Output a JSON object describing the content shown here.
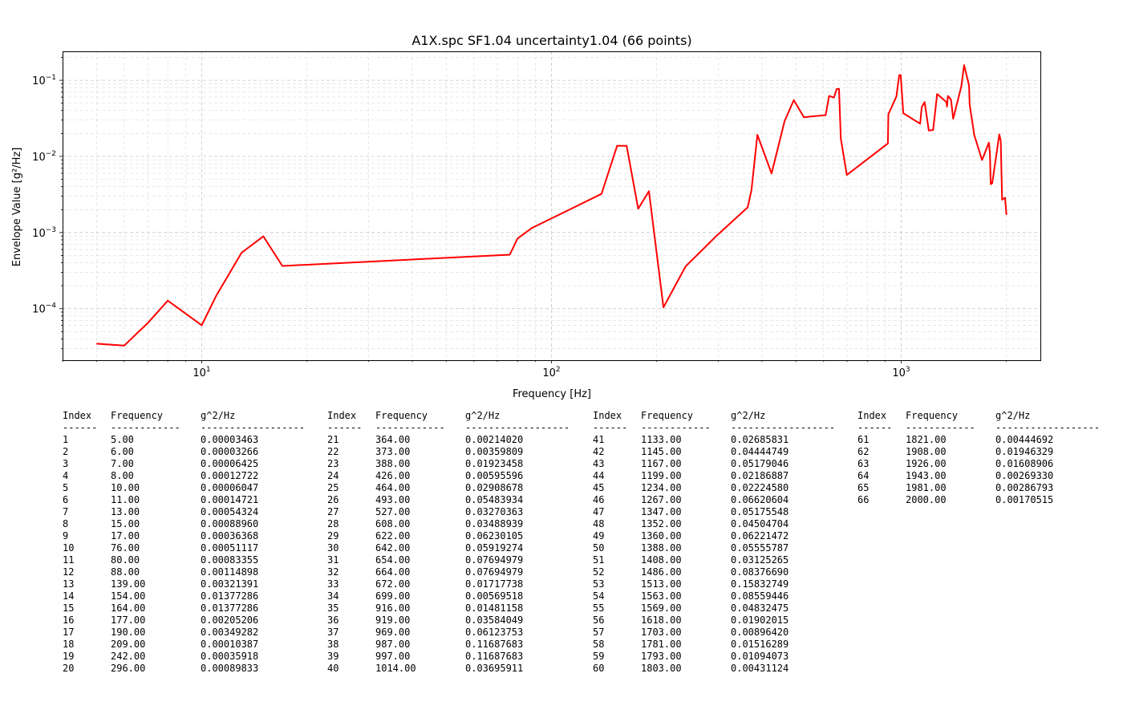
{
  "chart_data": {
    "type": "line",
    "title": "A1X.spc SF1.04 uncertainty1.04 (66 points)",
    "xlabel": "Frequency [Hz]",
    "ylabel": "Envelope Value [g²/Hz]",
    "xscale": "log",
    "yscale": "log",
    "xlim": [
      4.0,
      2500.0
    ],
    "ylim": [
      2.1e-05,
      0.24
    ],
    "grid": true,
    "line_color": "#ff0000",
    "x_tick_labels": [
      {
        "value": 10,
        "base": "10",
        "exp": "1"
      },
      {
        "value": 100,
        "base": "10",
        "exp": "2"
      },
      {
        "value": 1000,
        "base": "10",
        "exp": "3"
      }
    ],
    "y_tick_labels": [
      {
        "value": 0.0001,
        "base": "10",
        "exp": "−4"
      },
      {
        "value": 0.001,
        "base": "10",
        "exp": "−3"
      },
      {
        "value": 0.01,
        "base": "10",
        "exp": "−2"
      },
      {
        "value": 0.1,
        "base": "10",
        "exp": "−1"
      }
    ],
    "x": [
      5,
      6,
      7,
      8,
      10,
      11,
      13,
      15,
      17,
      76,
      80,
      88,
      139,
      154,
      164,
      177,
      190,
      209,
      242,
      296,
      364,
      373,
      388,
      426,
      464,
      493,
      527,
      608,
      622,
      642,
      654,
      664,
      672,
      699,
      916,
      919,
      969,
      987,
      997,
      1014,
      1133,
      1145,
      1167,
      1199,
      1234,
      1267,
      1347,
      1352,
      1360,
      1388,
      1408,
      1486,
      1513,
      1563,
      1569,
      1618,
      1703,
      1781,
      1793,
      1803,
      1821,
      1908,
      1926,
      1943,
      1981,
      2000
    ],
    "y": [
      3.463e-05,
      3.266e-05,
      6.425e-05,
      0.00012722,
      6.047e-05,
      0.00014721,
      0.00054324,
      0.0008896,
      0.00036368,
      0.00051117,
      0.00083355,
      0.00114898,
      0.00321391,
      0.01377286,
      0.01377286,
      0.00205206,
      0.00349282,
      0.00010387,
      0.00035918,
      0.00089833,
      0.0021402,
      0.00359809,
      0.01923458,
      0.00595596,
      0.02908678,
      0.05483934,
      0.03270363,
      0.03488939,
      0.06230105,
      0.05919274,
      0.07694979,
      0.07694979,
      0.01717738,
      0.00569518,
      0.01481158,
      0.03584049,
      0.06123753,
      0.11687683,
      0.11687683,
      0.03695911,
      0.02685831,
      0.04444749,
      0.05179046,
      0.02186887,
      0.0222458,
      0.06620604,
      0.05175548,
      0.04504704,
      0.06221472,
      0.05555787,
      0.03125265,
      0.0837669,
      0.15832749,
      0.08559446,
      0.04832475,
      0.01902015,
      0.0089642,
      0.01516289,
      0.01094073,
      0.00431124,
      0.00444692,
      0.01946329,
      0.01608906,
      0.0026933,
      0.00286793,
      0.00170515
    ]
  },
  "table": {
    "headers": [
      "Index",
      "Frequency",
      "g^2/Hz"
    ],
    "separators": [
      "------",
      "------------",
      "------------------"
    ],
    "rows": [
      [
        "1",
        "5.00",
        "0.00003463"
      ],
      [
        "2",
        "6.00",
        "0.00003266"
      ],
      [
        "3",
        "7.00",
        "0.00006425"
      ],
      [
        "4",
        "8.00",
        "0.00012722"
      ],
      [
        "5",
        "10.00",
        "0.00006047"
      ],
      [
        "6",
        "11.00",
        "0.00014721"
      ],
      [
        "7",
        "13.00",
        "0.00054324"
      ],
      [
        "8",
        "15.00",
        "0.00088960"
      ],
      [
        "9",
        "17.00",
        "0.00036368"
      ],
      [
        "10",
        "76.00",
        "0.00051117"
      ],
      [
        "11",
        "80.00",
        "0.00083355"
      ],
      [
        "12",
        "88.00",
        "0.00114898"
      ],
      [
        "13",
        "139.00",
        "0.00321391"
      ],
      [
        "14",
        "154.00",
        "0.01377286"
      ],
      [
        "15",
        "164.00",
        "0.01377286"
      ],
      [
        "16",
        "177.00",
        "0.00205206"
      ],
      [
        "17",
        "190.00",
        "0.00349282"
      ],
      [
        "18",
        "209.00",
        "0.00010387"
      ],
      [
        "19",
        "242.00",
        "0.00035918"
      ],
      [
        "20",
        "296.00",
        "0.00089833"
      ],
      [
        "21",
        "364.00",
        "0.00214020"
      ],
      [
        "22",
        "373.00",
        "0.00359809"
      ],
      [
        "23",
        "388.00",
        "0.01923458"
      ],
      [
        "24",
        "426.00",
        "0.00595596"
      ],
      [
        "25",
        "464.00",
        "0.02908678"
      ],
      [
        "26",
        "493.00",
        "0.05483934"
      ],
      [
        "27",
        "527.00",
        "0.03270363"
      ],
      [
        "28",
        "608.00",
        "0.03488939"
      ],
      [
        "29",
        "622.00",
        "0.06230105"
      ],
      [
        "30",
        "642.00",
        "0.05919274"
      ],
      [
        "31",
        "654.00",
        "0.07694979"
      ],
      [
        "32",
        "664.00",
        "0.07694979"
      ],
      [
        "33",
        "672.00",
        "0.01717738"
      ],
      [
        "34",
        "699.00",
        "0.00569518"
      ],
      [
        "35",
        "916.00",
        "0.01481158"
      ],
      [
        "36",
        "919.00",
        "0.03584049"
      ],
      [
        "37",
        "969.00",
        "0.06123753"
      ],
      [
        "38",
        "987.00",
        "0.11687683"
      ],
      [
        "39",
        "997.00",
        "0.11687683"
      ],
      [
        "40",
        "1014.00",
        "0.03695911"
      ],
      [
        "41",
        "1133.00",
        "0.02685831"
      ],
      [
        "42",
        "1145.00",
        "0.04444749"
      ],
      [
        "43",
        "1167.00",
        "0.05179046"
      ],
      [
        "44",
        "1199.00",
        "0.02186887"
      ],
      [
        "45",
        "1234.00",
        "0.02224580"
      ],
      [
        "46",
        "1267.00",
        "0.06620604"
      ],
      [
        "47",
        "1347.00",
        "0.05175548"
      ],
      [
        "48",
        "1352.00",
        "0.04504704"
      ],
      [
        "49",
        "1360.00",
        "0.06221472"
      ],
      [
        "50",
        "1388.00",
        "0.05555787"
      ],
      [
        "51",
        "1408.00",
        "0.03125265"
      ],
      [
        "52",
        "1486.00",
        "0.08376690"
      ],
      [
        "53",
        "1513.00",
        "0.15832749"
      ],
      [
        "54",
        "1563.00",
        "0.08559446"
      ],
      [
        "55",
        "1569.00",
        "0.04832475"
      ],
      [
        "56",
        "1618.00",
        "0.01902015"
      ],
      [
        "57",
        "1703.00",
        "0.00896420"
      ],
      [
        "58",
        "1781.00",
        "0.01516289"
      ],
      [
        "59",
        "1793.00",
        "0.01094073"
      ],
      [
        "60",
        "1803.00",
        "0.00431124"
      ],
      [
        "61",
        "1821.00",
        "0.00444692"
      ],
      [
        "62",
        "1908.00",
        "0.01946329"
      ],
      [
        "63",
        "1926.00",
        "0.01608906"
      ],
      [
        "64",
        "1943.00",
        "0.00269330"
      ],
      [
        "65",
        "1981.00",
        "0.00286793"
      ],
      [
        "66",
        "2000.00",
        "0.00170515"
      ]
    ]
  }
}
